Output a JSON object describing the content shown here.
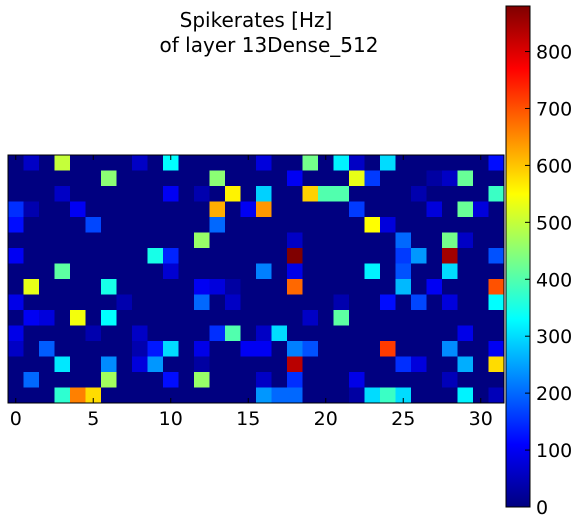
{
  "chart_data": {
    "type": "heatmap",
    "title_lines": [
      "Spikerates [Hz]",
      "of layer 13Dense_512"
    ],
    "x_ticks": [
      0,
      5,
      10,
      15,
      20,
      25,
      30
    ],
    "x_tick_labels": [
      "0",
      "5",
      "10",
      "15",
      "20",
      "25",
      "30"
    ],
    "xlim": [
      -0.5,
      31.5
    ],
    "n_cols": 32,
    "n_rows": 16,
    "colormap": "jet",
    "color_range": [
      0,
      880
    ],
    "colorbar_ticks": [
      0,
      100,
      200,
      300,
      400,
      500,
      600,
      700,
      800
    ],
    "colorbar_tick_labels": [
      "0",
      "100",
      "200",
      "300",
      "400",
      "500",
      "600",
      "700",
      "800"
    ],
    "values": [
      [
        0,
        60,
        0,
        500,
        0,
        0,
        0,
        0,
        60,
        0,
        330,
        0,
        0,
        0,
        0,
        0,
        80,
        0,
        0,
        430,
        0,
        320,
        60,
        0,
        300,
        0,
        0,
        0,
        0,
        0,
        0,
        120
      ],
      [
        0,
        0,
        0,
        0,
        0,
        0,
        450,
        0,
        0,
        0,
        0,
        0,
        0,
        450,
        0,
        0,
        0,
        0,
        100,
        0,
        0,
        0,
        530,
        160,
        0,
        0,
        0,
        30,
        60,
        420,
        0,
        0
      ],
      [
        0,
        0,
        0,
        60,
        0,
        0,
        0,
        0,
        0,
        0,
        100,
        0,
        40,
        0,
        560,
        0,
        290,
        0,
        0,
        590,
        400,
        400,
        0,
        0,
        0,
        0,
        40,
        0,
        0,
        0,
        0,
        380
      ],
      [
        150,
        40,
        0,
        0,
        100,
        0,
        0,
        0,
        0,
        0,
        0,
        0,
        0,
        620,
        0,
        100,
        640,
        0,
        0,
        0,
        0,
        0,
        160,
        0,
        0,
        0,
        0,
        80,
        0,
        420,
        80,
        0
      ],
      [
        120,
        0,
        0,
        0,
        0,
        170,
        0,
        0,
        0,
        0,
        0,
        0,
        0,
        200,
        0,
        0,
        0,
        0,
        0,
        0,
        0,
        0,
        0,
        550,
        80,
        0,
        0,
        0,
        0,
        0,
        0,
        0
      ],
      [
        0,
        0,
        0,
        0,
        0,
        0,
        0,
        0,
        0,
        0,
        0,
        0,
        460,
        0,
        0,
        0,
        0,
        0,
        60,
        0,
        0,
        0,
        0,
        0,
        0,
        200,
        0,
        0,
        430,
        60,
        0,
        0
      ],
      [
        100,
        0,
        0,
        0,
        0,
        0,
        0,
        0,
        0,
        350,
        140,
        0,
        0,
        0,
        0,
        0,
        0,
        0,
        880,
        0,
        0,
        0,
        0,
        0,
        0,
        160,
        240,
        0,
        850,
        0,
        0,
        180
      ],
      [
        0,
        0,
        0,
        410,
        0,
        0,
        0,
        0,
        0,
        0,
        70,
        0,
        0,
        0,
        0,
        0,
        220,
        0,
        90,
        0,
        0,
        0,
        0,
        320,
        0,
        180,
        0,
        0,
        300,
        0,
        0,
        0
      ],
      [
        0,
        530,
        0,
        0,
        0,
        0,
        350,
        0,
        0,
        0,
        0,
        0,
        100,
        80,
        30,
        0,
        0,
        0,
        680,
        0,
        0,
        0,
        0,
        0,
        0,
        270,
        0,
        100,
        0,
        0,
        0,
        700
      ],
      [
        90,
        0,
        0,
        0,
        0,
        0,
        0,
        40,
        0,
        0,
        0,
        0,
        200,
        0,
        60,
        0,
        0,
        0,
        0,
        0,
        0,
        40,
        0,
        0,
        120,
        0,
        170,
        0,
        80,
        0,
        0,
        330
      ],
      [
        0,
        100,
        80,
        0,
        540,
        0,
        330,
        0,
        0,
        0,
        0,
        0,
        0,
        0,
        0,
        0,
        0,
        0,
        0,
        60,
        0,
        410,
        0,
        0,
        0,
        0,
        0,
        0,
        0,
        0,
        0,
        0
      ],
      [
        90,
        0,
        0,
        0,
        0,
        40,
        0,
        0,
        60,
        0,
        0,
        0,
        0,
        150,
        400,
        0,
        60,
        300,
        0,
        0,
        0,
        0,
        0,
        0,
        0,
        0,
        0,
        0,
        0,
        90,
        0,
        0
      ],
      [
        60,
        0,
        190,
        0,
        0,
        0,
        0,
        0,
        40,
        130,
        300,
        0,
        90,
        0,
        0,
        100,
        100,
        0,
        220,
        180,
        0,
        0,
        0,
        0,
        720,
        0,
        0,
        0,
        230,
        0,
        0,
        100
      ],
      [
        0,
        0,
        0,
        310,
        0,
        0,
        230,
        0,
        80,
        240,
        0,
        0,
        30,
        0,
        0,
        0,
        0,
        0,
        830,
        0,
        0,
        0,
        0,
        0,
        0,
        150,
        80,
        0,
        0,
        260,
        0,
        580
      ],
      [
        0,
        200,
        0,
        0,
        0,
        0,
        470,
        0,
        0,
        0,
        120,
        0,
        460,
        0,
        0,
        0,
        60,
        0,
        150,
        0,
        0,
        0,
        90,
        0,
        0,
        0,
        0,
        0,
        50,
        0,
        0,
        0
      ],
      [
        0,
        0,
        0,
        370,
        660,
        580,
        0,
        0,
        0,
        0,
        0,
        0,
        0,
        0,
        0,
        0,
        240,
        200,
        200,
        0,
        0,
        0,
        30,
        300,
        380,
        300,
        0,
        0,
        0,
        320,
        0,
        50
      ]
    ]
  }
}
